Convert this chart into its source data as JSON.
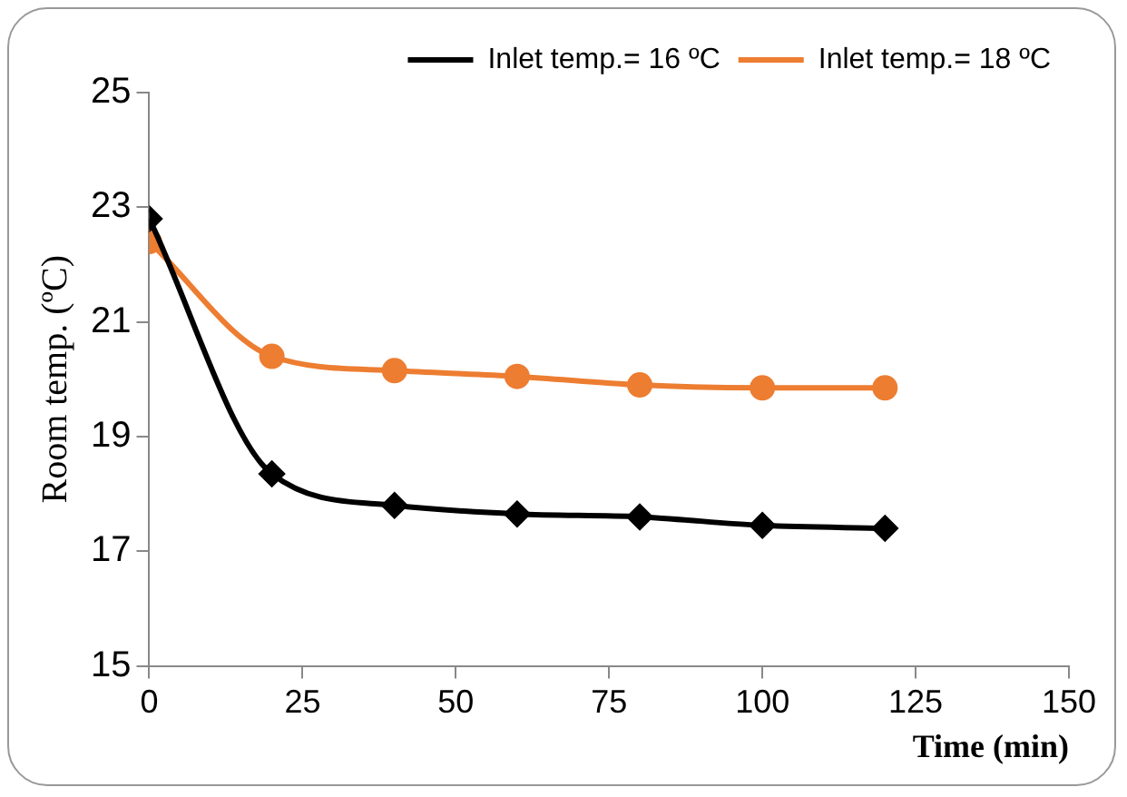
{
  "chart_data": {
    "type": "line",
    "xlabel": "Time (min)",
    "ylabel": "Room temp. (ºC)",
    "x": [
      0,
      20,
      40,
      60,
      80,
      100,
      120
    ],
    "series": [
      {
        "name": "Inlet temp.= 16 ºC",
        "color": "#000000",
        "marker": "diamond",
        "values": [
          22.8,
          18.35,
          17.8,
          17.65,
          17.6,
          17.45,
          17.4
        ]
      },
      {
        "name": "Inlet temp.= 18 ºC",
        "color": "#ed7d31",
        "marker": "circle",
        "values": [
          22.4,
          20.4,
          20.15,
          20.05,
          19.9,
          19.85,
          19.85
        ]
      }
    ],
    "xlim": [
      0,
      150
    ],
    "xticks": [
      0,
      25,
      50,
      75,
      100,
      125,
      150
    ],
    "ylim": [
      15,
      25
    ],
    "yticks": [
      15,
      17,
      19,
      21,
      23,
      25
    ],
    "grid": false,
    "legend": "top right",
    "line_style": "solid"
  }
}
